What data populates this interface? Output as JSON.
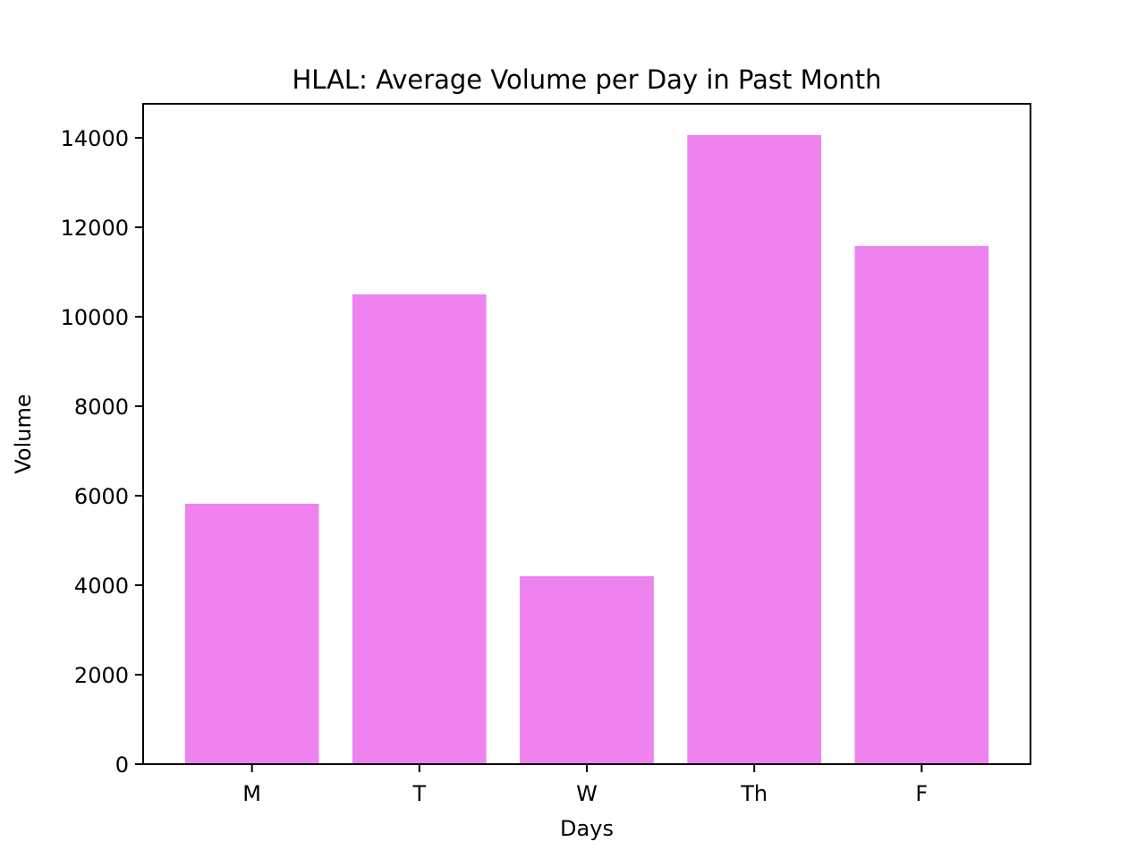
{
  "chart_data": {
    "type": "bar",
    "title": "HLAL: Average Volume per Day in Past Month",
    "xlabel": "Days",
    "ylabel": "Volume",
    "categories": [
      "M",
      "T",
      "W",
      "Th",
      "F"
    ],
    "values": [
      5820,
      10500,
      4200,
      14060,
      11580
    ],
    "ylim": [
      0,
      14760
    ],
    "yticks": [
      0,
      2000,
      4000,
      6000,
      8000,
      10000,
      12000,
      14000
    ],
    "ytick_labels": [
      "0",
      "2000",
      "4000",
      "6000",
      "8000",
      "10000",
      "12000",
      "14000"
    ],
    "bar_color": "#ee82ee",
    "grid": false,
    "legend": "none"
  }
}
